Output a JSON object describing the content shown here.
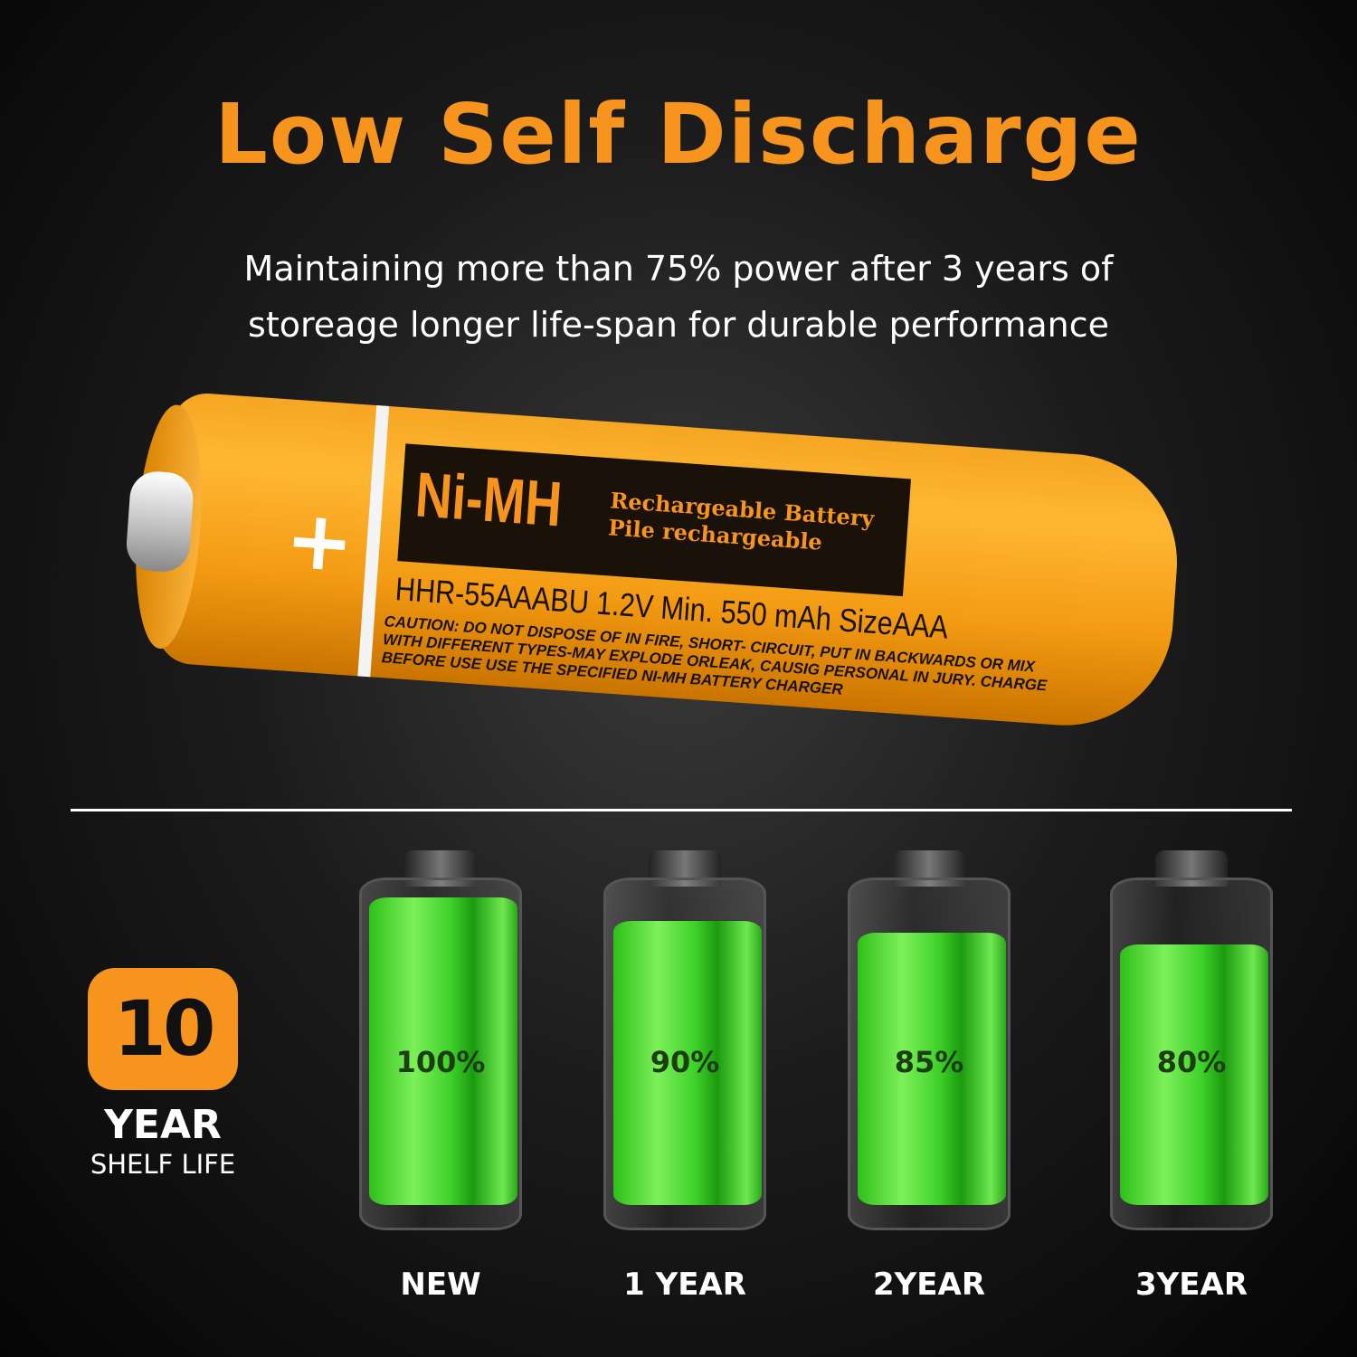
{
  "title": "Low Self Discharge",
  "subtitle": [
    "Maintaining more than 75% power after 3 years of",
    "storeage longer life-span for durable performance"
  ],
  "battery_label": {
    "chemistry": "Ni-MH",
    "line1": "Rechargeable Battery",
    "line2": "Pile rechargeable",
    "spec": "HHR-55AAABU 1.2V  Min. 550 mAh  SizeAAA",
    "caution": [
      "CAUTION: DO NOT DISPOSE OF IN FIRE, SHORT- CIRCUIT, PUT IN BACKWARDS OR MIX",
      "WITH DIFFERENT TYPES-MAY EXPLODE ORLEAK, CAUSIG PERSONAL IN JURY. CHARGE",
      "BEFORE USE USE THE SPECIFIED NI-MH BATTERY CHARGER"
    ],
    "terminal": "+"
  },
  "badge": {
    "number": "10",
    "year": "YEAR",
    "shelf": "SHELF LIFE"
  },
  "levels": [
    {
      "label": "NEW",
      "percent_text": "100%",
      "level": 100
    },
    {
      "label": "1 YEAR",
      "percent_text": "90%",
      "level": 90
    },
    {
      "label": "2YEAR",
      "percent_text": "85%",
      "level": 85
    },
    {
      "label": "3YEAR",
      "percent_text": "80%",
      "level": 80
    }
  ],
  "colors": {
    "accent": "#f7941d",
    "fill_green": "#3ed12a"
  }
}
